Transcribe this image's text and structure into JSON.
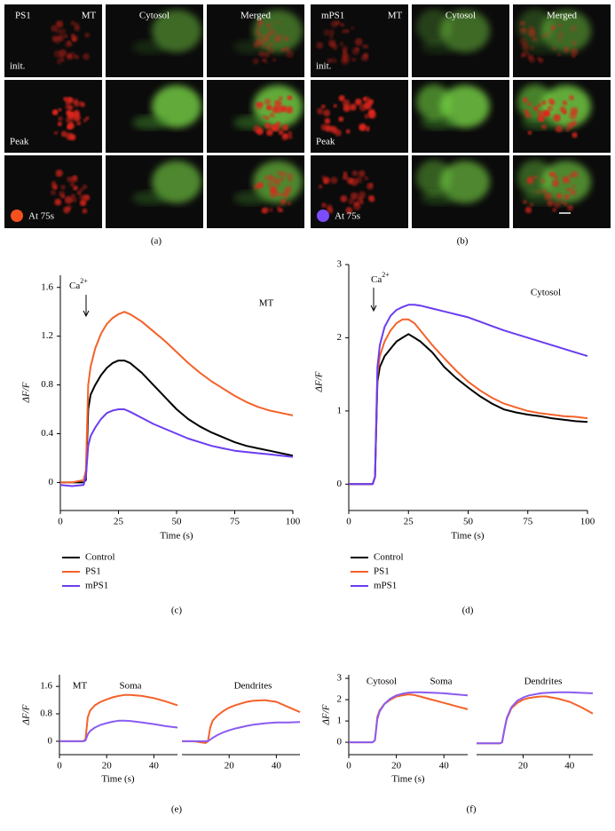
{
  "images": [
    {
      "panel": "(a)",
      "protein": "PS1",
      "channels": [
        "MT",
        "Cytosol",
        "Merged"
      ],
      "rows": [
        "init.",
        "Peak",
        "At 75s"
      ],
      "color": "#f4511e"
    },
    {
      "panel": "(b)",
      "protein": "mPS1",
      "channels": [
        "MT",
        "Cytosol",
        "Merged"
      ],
      "rows": [
        "init.",
        "Peak",
        "At 75s"
      ],
      "color": "#7b4dff"
    }
  ],
  "chart_data": [
    {
      "type": "line",
      "label": "(c)",
      "title": "MT",
      "annotation": {
        "text": "Ca",
        "sup": "2+"
      },
      "xlabel": "Time (s)",
      "ylabel": "ΔF/F",
      "xlim": [
        0,
        100
      ],
      "xticks": [
        0,
        25,
        50,
        75,
        100
      ],
      "ylim": [
        -0.23,
        1.7
      ],
      "yticks": [
        0,
        0.4,
        0.8,
        1.2,
        1.6
      ],
      "legend": "below",
      "x": [
        0,
        5,
        10,
        11,
        12,
        13,
        15,
        17.5,
        20,
        22.5,
        25,
        27.5,
        30,
        35,
        40,
        45,
        50,
        55,
        60,
        65,
        70,
        75,
        80,
        85,
        90,
        95,
        100
      ],
      "series": [
        {
          "name": "Control",
          "color": "#000000",
          "values": [
            0,
            0,
            0,
            0.02,
            0.6,
            0.72,
            0.8,
            0.88,
            0.94,
            0.98,
            1.0,
            1.0,
            0.98,
            0.9,
            0.8,
            0.7,
            0.6,
            0.52,
            0.46,
            0.41,
            0.37,
            0.33,
            0.3,
            0.28,
            0.26,
            0.24,
            0.22
          ]
        },
        {
          "name": "PS1",
          "color": "#f4622a",
          "values": [
            0,
            0,
            0.02,
            0.1,
            0.8,
            0.95,
            1.1,
            1.22,
            1.3,
            1.35,
            1.38,
            1.4,
            1.38,
            1.32,
            1.24,
            1.16,
            1.07,
            0.98,
            0.9,
            0.83,
            0.77,
            0.71,
            0.66,
            0.62,
            0.59,
            0.57,
            0.55
          ]
        },
        {
          "name": "mPS1",
          "color": "#6a3df0",
          "values": [
            -0.02,
            -0.03,
            -0.02,
            0.05,
            0.3,
            0.38,
            0.45,
            0.52,
            0.57,
            0.59,
            0.6,
            0.6,
            0.58,
            0.53,
            0.48,
            0.44,
            0.4,
            0.36,
            0.33,
            0.3,
            0.28,
            0.26,
            0.25,
            0.24,
            0.23,
            0.22,
            0.21
          ]
        }
      ]
    },
    {
      "type": "line",
      "label": "(d)",
      "title": "Cytosol",
      "annotation": {
        "text": "Ca",
        "sup": "2+"
      },
      "xlabel": "Time (s)",
      "ylabel": "ΔF/F",
      "xlim": [
        0,
        100
      ],
      "xticks": [
        0,
        25,
        50,
        75,
        100
      ],
      "ylim": [
        -0.36,
        3
      ],
      "yticks": [
        0,
        1,
        2,
        3
      ],
      "legend": "below",
      "x": [
        0,
        5,
        10,
        11,
        12,
        13,
        15,
        17.5,
        20,
        22.5,
        25,
        27.5,
        30,
        35,
        40,
        45,
        50,
        55,
        60,
        65,
        70,
        75,
        80,
        85,
        90,
        95,
        100
      ],
      "series": [
        {
          "name": "Control",
          "color": "#000000",
          "values": [
            0,
            0,
            0,
            0.1,
            1.4,
            1.6,
            1.75,
            1.85,
            1.95,
            2.0,
            2.05,
            2.0,
            1.95,
            1.8,
            1.6,
            1.45,
            1.32,
            1.2,
            1.1,
            1.02,
            0.98,
            0.95,
            0.93,
            0.9,
            0.88,
            0.86,
            0.85
          ]
        },
        {
          "name": "PS1",
          "color": "#f4622a",
          "values": [
            0,
            0,
            0,
            0.1,
            1.5,
            1.75,
            1.95,
            2.1,
            2.2,
            2.25,
            2.25,
            2.2,
            2.1,
            1.9,
            1.72,
            1.55,
            1.4,
            1.28,
            1.18,
            1.1,
            1.05,
            1.0,
            0.97,
            0.95,
            0.93,
            0.92,
            0.9
          ]
        },
        {
          "name": "mPS1",
          "color": "#6a3df0",
          "values": [
            0,
            0,
            0,
            0.1,
            1.6,
            1.9,
            2.15,
            2.3,
            2.38,
            2.42,
            2.45,
            2.45,
            2.44,
            2.4,
            2.36,
            2.32,
            2.28,
            2.22,
            2.16,
            2.1,
            2.05,
            2.0,
            1.95,
            1.9,
            1.85,
            1.8,
            1.75
          ]
        }
      ]
    },
    {
      "type": "line",
      "label": "(e)",
      "title": "MT",
      "subtitle": "Soma",
      "xlabel": "Time (s)",
      "ylabel": "ΔF/F",
      "xlim": [
        0,
        50
      ],
      "xticks": [
        0,
        20,
        40
      ],
      "ylim": [
        -0.39,
        1.94
      ],
      "yticks": [
        0,
        0.8,
        1.6
      ],
      "x": [
        0,
        5,
        10,
        11,
        12,
        13,
        15,
        17.5,
        20,
        22.5,
        25,
        27.5,
        30,
        35,
        40,
        45,
        50
      ],
      "series": [
        {
          "color": "#f4622a",
          "values": [
            0,
            0,
            0,
            0.05,
            0.7,
            0.9,
            1.05,
            1.15,
            1.22,
            1.28,
            1.32,
            1.35,
            1.35,
            1.32,
            1.26,
            1.16,
            1.05
          ]
        },
        {
          "color": "#8a5cf0",
          "values": [
            0,
            0,
            0,
            0.02,
            0.2,
            0.3,
            0.4,
            0.48,
            0.53,
            0.57,
            0.6,
            0.6,
            0.59,
            0.55,
            0.5,
            0.44,
            0.4
          ]
        }
      ]
    },
    {
      "type": "line",
      "subtitle": "Dendrites",
      "xlim": [
        0,
        50
      ],
      "xticks": [
        20,
        40
      ],
      "ylim": [
        -0.39,
        1.94
      ],
      "x": [
        0,
        5,
        10,
        11,
        12,
        13,
        15,
        17.5,
        20,
        22.5,
        25,
        27.5,
        30,
        35,
        40,
        45,
        50
      ],
      "series": [
        {
          "color": "#f4622a",
          "values": [
            0,
            0,
            -0.05,
            0,
            0.4,
            0.6,
            0.75,
            0.88,
            0.98,
            1.05,
            1.1,
            1.15,
            1.18,
            1.2,
            1.15,
            1.0,
            0.85
          ]
        },
        {
          "color": "#8a5cf0",
          "values": [
            0,
            0,
            0,
            0,
            0.05,
            0.1,
            0.18,
            0.26,
            0.32,
            0.37,
            0.41,
            0.45,
            0.48,
            0.52,
            0.55,
            0.55,
            0.56
          ]
        }
      ]
    },
    {
      "type": "line",
      "label": "(f)",
      "title": "Cytosol",
      "subtitle": "Soma",
      "xlabel": "Time (s)",
      "ylabel": "ΔF/F",
      "xlim": [
        0,
        50
      ],
      "xticks": [
        0,
        20,
        40
      ],
      "ylim": [
        -0.58,
        3.17
      ],
      "yticks": [
        0,
        1,
        2,
        3
      ],
      "x": [
        0,
        5,
        10,
        11,
        12,
        13,
        15,
        17.5,
        20,
        22.5,
        25,
        27.5,
        30,
        35,
        40,
        45,
        50
      ],
      "series": [
        {
          "color": "#f4622a",
          "values": [
            0,
            0,
            0,
            0.1,
            1.2,
            1.5,
            1.8,
            2.0,
            2.15,
            2.2,
            2.25,
            2.22,
            2.15,
            2.0,
            1.85,
            1.7,
            1.55
          ]
        },
        {
          "color": "#8a5cf0",
          "values": [
            0,
            0,
            0,
            0.1,
            1.1,
            1.45,
            1.8,
            2.05,
            2.2,
            2.28,
            2.33,
            2.35,
            2.35,
            2.33,
            2.3,
            2.25,
            2.2
          ]
        }
      ]
    },
    {
      "type": "line",
      "subtitle": "Dendrites",
      "xlim": [
        0,
        50
      ],
      "xticks": [
        20,
        40
      ],
      "ylim": [
        -0.58,
        3.17
      ],
      "x": [
        0,
        5,
        10,
        11,
        12,
        13,
        15,
        17.5,
        20,
        22.5,
        25,
        27.5,
        30,
        35,
        40,
        45,
        50
      ],
      "series": [
        {
          "color": "#f4622a",
          "values": [
            -0.05,
            -0.05,
            -0.05,
            0,
            0.6,
            1.1,
            1.6,
            1.85,
            2.0,
            2.08,
            2.12,
            2.15,
            2.15,
            2.05,
            1.9,
            1.65,
            1.35
          ]
        },
        {
          "color": "#8a5cf0",
          "values": [
            -0.05,
            -0.05,
            -0.05,
            0,
            0.6,
            1.15,
            1.65,
            1.95,
            2.1,
            2.2,
            2.25,
            2.3,
            2.32,
            2.35,
            2.35,
            2.32,
            2.3
          ]
        }
      ]
    }
  ]
}
